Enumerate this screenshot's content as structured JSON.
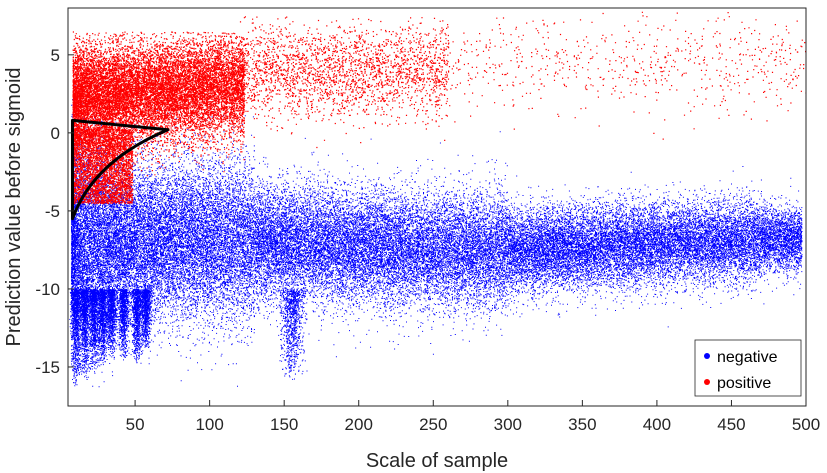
{
  "chart_data": {
    "type": "scatter",
    "title": "",
    "xlabel": "Scale of sample",
    "ylabel": "Prediction value before sigmoid",
    "xlim": [
      5,
      500
    ],
    "ylim": [
      -17.5,
      8
    ],
    "xticks": [
      50,
      100,
      150,
      200,
      250,
      300,
      350,
      400,
      450,
      500
    ],
    "yticks": [
      5,
      0,
      -5,
      -10,
      -15
    ],
    "grid": false,
    "legend_position": "bottom-right",
    "series": [
      {
        "name": "negative",
        "color": "#0000ff",
        "description": "dense band centered near -7 with occasional points up to +2 and down to -16",
        "center_profile": {
          "x": [
            10,
            50,
            100,
            150,
            200,
            300,
            400,
            480
          ],
          "y": [
            -7.0,
            -7.5,
            -7.5,
            -7.0,
            -6.8,
            -6.8,
            -7.0,
            -7.0
          ]
        }
      },
      {
        "name": "positive",
        "color": "#ff0000",
        "description": "cloud mostly above 0, densest between x 10-120 at y 0-5, sparse to x 500 up to y 7",
        "center_profile": {
          "x": [
            10,
            50,
            100,
            150,
            200,
            300,
            400,
            480
          ],
          "y": [
            0.0,
            2.5,
            3.0,
            3.2,
            3.5,
            4.5,
            4.5,
            4.0
          ]
        }
      }
    ],
    "annotation": {
      "type": "triangle-outline",
      "color": "#000000",
      "vertices": [
        [
          8,
          0.8
        ],
        [
          72,
          0.2
        ],
        [
          8,
          -5.5
        ]
      ]
    }
  }
}
